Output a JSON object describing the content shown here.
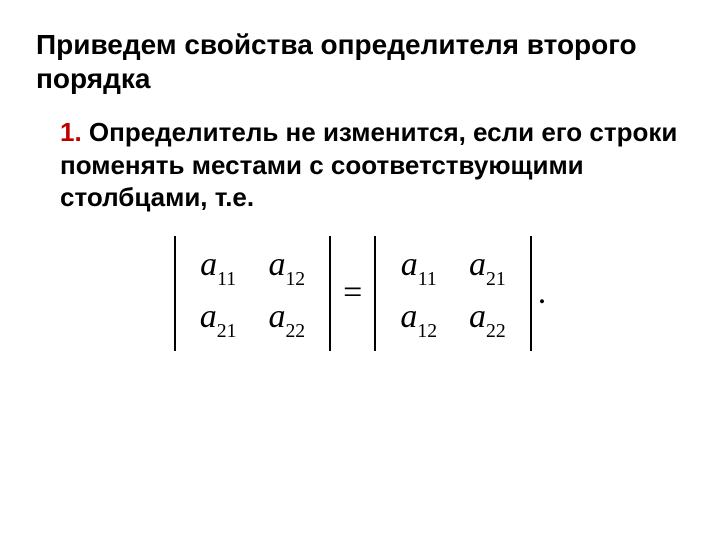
{
  "heading": "Приведем свойства определителя второго порядка",
  "item": {
    "number": "1.",
    "text": " Определитель не изменится, если его строки поменять местами с соответствующими столбцами, т.е."
  },
  "equation": {
    "left": {
      "rows": [
        [
          "a",
          "11",
          "a",
          "12"
        ],
        [
          "a",
          "21",
          "a",
          "22"
        ]
      ]
    },
    "equals": "=",
    "right": {
      "rows": [
        [
          "a",
          "11",
          "a",
          "21"
        ],
        [
          "a",
          "12",
          "a",
          "22"
        ]
      ]
    },
    "dot": "."
  },
  "colors": {
    "item_number": "#c00000",
    "text": "#000000",
    "background": "#ffffff"
  },
  "fonts": {
    "heading_size": 28,
    "body_size": 26,
    "math_size": 34,
    "heading_weight": 700,
    "body_weight": 700,
    "heading_family": "Arial",
    "math_family": "Times New Roman"
  }
}
